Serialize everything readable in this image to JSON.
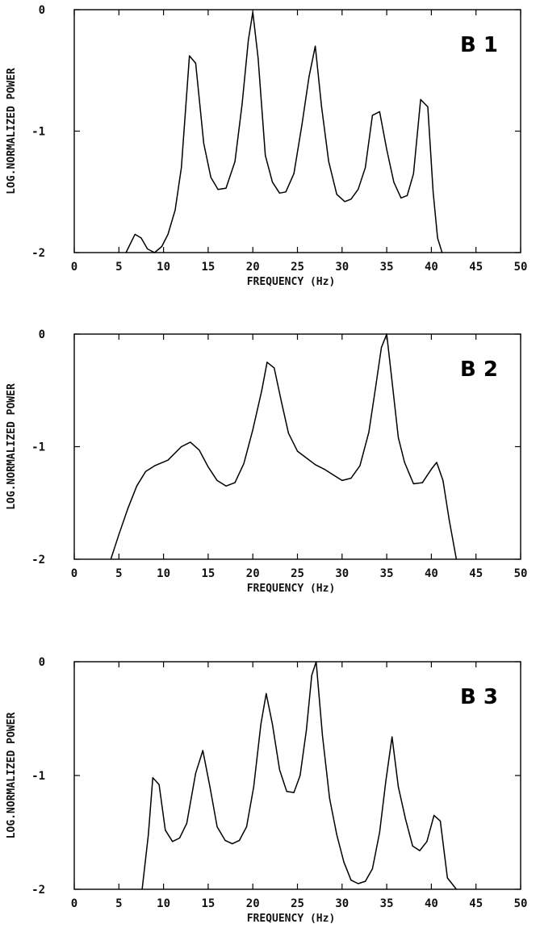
{
  "chart_data": [
    {
      "type": "line",
      "label": "B 1",
      "xlabel": "FREQUENCY (Hz)",
      "ylabel": "LOG.NORMALIZED POWER",
      "xlim": [
        0,
        50
      ],
      "ylim": [
        -2,
        0
      ],
      "xticks": [
        "0",
        "5",
        "10",
        "15",
        "20",
        "25",
        "30",
        "35",
        "40",
        "45",
        "50"
      ],
      "yticks": [
        "0",
        "-1",
        "-2"
      ],
      "grid": false,
      "x": [
        5.8,
        6.8,
        7.5,
        8.2,
        9,
        9.8,
        10.5,
        11.3,
        12,
        12.9,
        13.6,
        14.5,
        15.3,
        16.1,
        17,
        18,
        18.8,
        19.5,
        20,
        20.6,
        21.4,
        22.2,
        23,
        23.7,
        24.6,
        25.5,
        26.3,
        27,
        27.7,
        28.5,
        29.4,
        30.3,
        31,
        31.8,
        32.6,
        33.4,
        34.2,
        35,
        35.8,
        36.6,
        37.3,
        38,
        38.8,
        39.6,
        40.2,
        40.7,
        41.2
      ],
      "y": [
        -2.0,
        -1.85,
        -1.88,
        -1.97,
        -2.0,
        -1.95,
        -1.85,
        -1.65,
        -1.3,
        -0.38,
        -0.44,
        -1.1,
        -1.38,
        -1.48,
        -1.47,
        -1.25,
        -0.78,
        -0.25,
        -0.02,
        -0.4,
        -1.2,
        -1.42,
        -1.51,
        -1.5,
        -1.35,
        -0.95,
        -0.55,
        -0.3,
        -0.8,
        -1.25,
        -1.52,
        -1.58,
        -1.56,
        -1.48,
        -1.3,
        -0.87,
        -0.84,
        -1.15,
        -1.42,
        -1.55,
        -1.53,
        -1.35,
        -0.74,
        -0.8,
        -1.5,
        -1.88,
        -2.0
      ]
    },
    {
      "type": "line",
      "label": "B 2",
      "xlabel": "FREQUENCY (Hz)",
      "ylabel": "LOG.NORMALIZED POWER",
      "xlim": [
        0,
        50
      ],
      "ylim": [
        -2,
        0
      ],
      "xticks": [
        "0",
        "5",
        "10",
        "15",
        "20",
        "25",
        "30",
        "35",
        "40",
        "45",
        "50"
      ],
      "yticks": [
        "0",
        "-1",
        "-2"
      ],
      "grid": false,
      "x": [
        4.1,
        5,
        6,
        7,
        8,
        9,
        10.5,
        12,
        13,
        14,
        15,
        16,
        17,
        18,
        19,
        20,
        21,
        21.6,
        22.4,
        23.2,
        24,
        25,
        26,
        27,
        28,
        29,
        30,
        31,
        32,
        33,
        33.8,
        34.4,
        35,
        35.6,
        36.3,
        37,
        38,
        39,
        40,
        40.6,
        41.3,
        42,
        42.8
      ],
      "y": [
        -2.0,
        -1.78,
        -1.55,
        -1.35,
        -1.22,
        -1.17,
        -1.12,
        -1.0,
        -0.96,
        -1.03,
        -1.18,
        -1.3,
        -1.35,
        -1.32,
        -1.15,
        -0.85,
        -0.5,
        -0.25,
        -0.3,
        -0.6,
        -0.88,
        -1.04,
        -1.1,
        -1.16,
        -1.2,
        -1.25,
        -1.3,
        -1.28,
        -1.17,
        -0.87,
        -0.45,
        -0.12,
        0.0,
        -0.42,
        -0.92,
        -1.14,
        -1.33,
        -1.32,
        -1.2,
        -1.14,
        -1.3,
        -1.65,
        -2.0
      ]
    },
    {
      "type": "line",
      "label": "B 3",
      "xlabel": "FREQUENCY (Hz)",
      "ylabel": "LOG.NORMALIZED POWER",
      "xlim": [
        0,
        50
      ],
      "ylim": [
        -2,
        0
      ],
      "xticks": [
        "0",
        "5",
        "10",
        "15",
        "20",
        "25",
        "30",
        "35",
        "40",
        "45",
        "50"
      ],
      "yticks": [
        "0",
        "-1",
        "-2"
      ],
      "grid": false,
      "x": [
        7.6,
        8.3,
        8.8,
        9.5,
        10.2,
        11,
        11.8,
        12.6,
        13.6,
        14.4,
        15.2,
        16,
        16.9,
        17.7,
        18.5,
        19.3,
        20.1,
        20.9,
        21.5,
        22.2,
        23,
        23.8,
        24.6,
        25.3,
        26,
        26.6,
        27.1,
        27.8,
        28.6,
        29.4,
        30.2,
        31,
        31.8,
        32.6,
        33.4,
        34.2,
        34.9,
        35.6,
        36.3,
        37.1,
        37.9,
        38.7,
        39.5,
        40.3,
        41,
        41.8,
        42.8
      ],
      "y": [
        -2.0,
        -1.52,
        -1.02,
        -1.08,
        -1.48,
        -1.58,
        -1.55,
        -1.42,
        -0.98,
        -0.78,
        -1.1,
        -1.45,
        -1.57,
        -1.6,
        -1.57,
        -1.45,
        -1.1,
        -0.55,
        -0.28,
        -0.55,
        -0.95,
        -1.14,
        -1.15,
        -1.0,
        -0.6,
        -0.12,
        0.0,
        -0.65,
        -1.2,
        -1.52,
        -1.76,
        -1.92,
        -1.95,
        -1.93,
        -1.82,
        -1.5,
        -1.05,
        -0.66,
        -1.1,
        -1.38,
        -1.62,
        -1.66,
        -1.58,
        -1.35,
        -1.4,
        -1.9,
        -2.0
      ]
    }
  ]
}
